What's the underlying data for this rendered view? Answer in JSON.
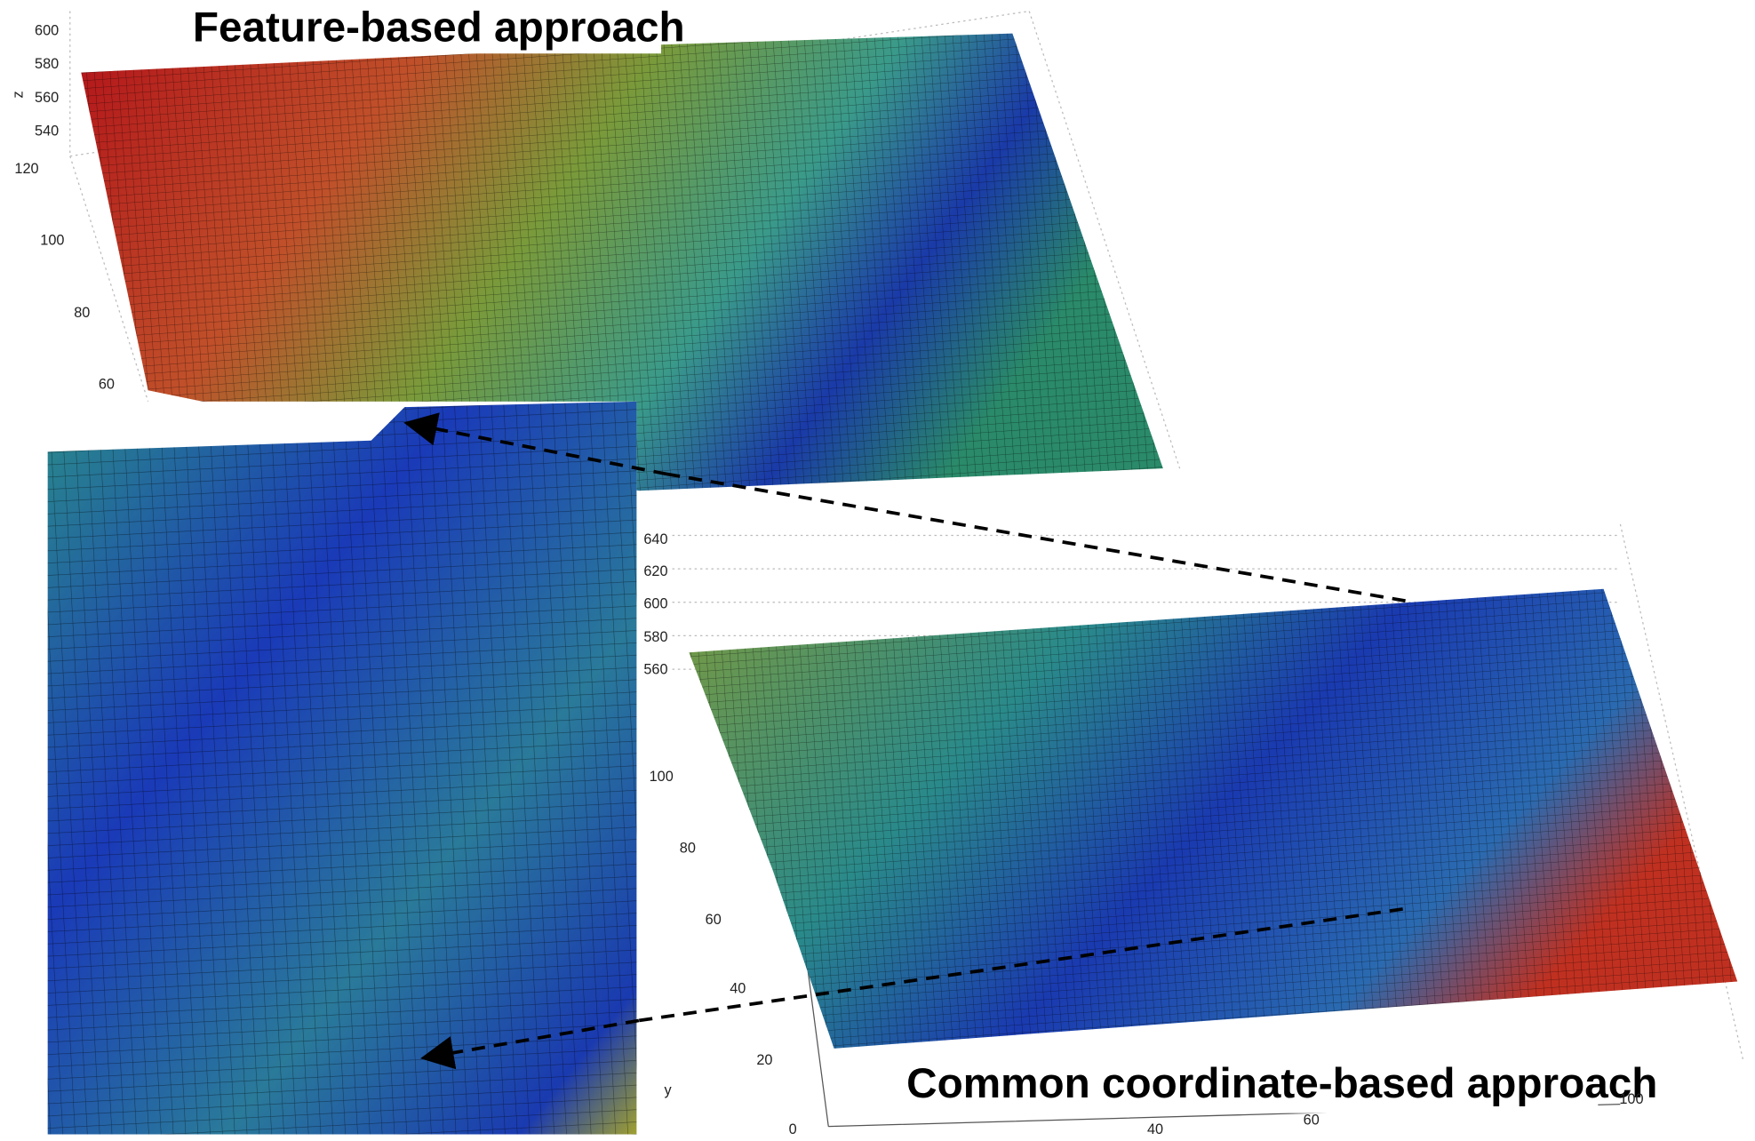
{
  "top_plot": {
    "title": "Feature-based approach",
    "z_label": "z",
    "z_ticks": [
      "600",
      "580",
      "560",
      "540"
    ],
    "y_ticks": [
      "120",
      "100",
      "80",
      "60"
    ]
  },
  "bottom_plot": {
    "title": "Common coordinate-based approach",
    "z_ticks": [
      "640",
      "620",
      "600",
      "580",
      "560"
    ],
    "y_ticks": [
      "100",
      "80",
      "60",
      "40",
      "20"
    ],
    "y_label": "y",
    "x_ticks": [
      "0",
      "40",
      "60",
      "100"
    ]
  }
}
